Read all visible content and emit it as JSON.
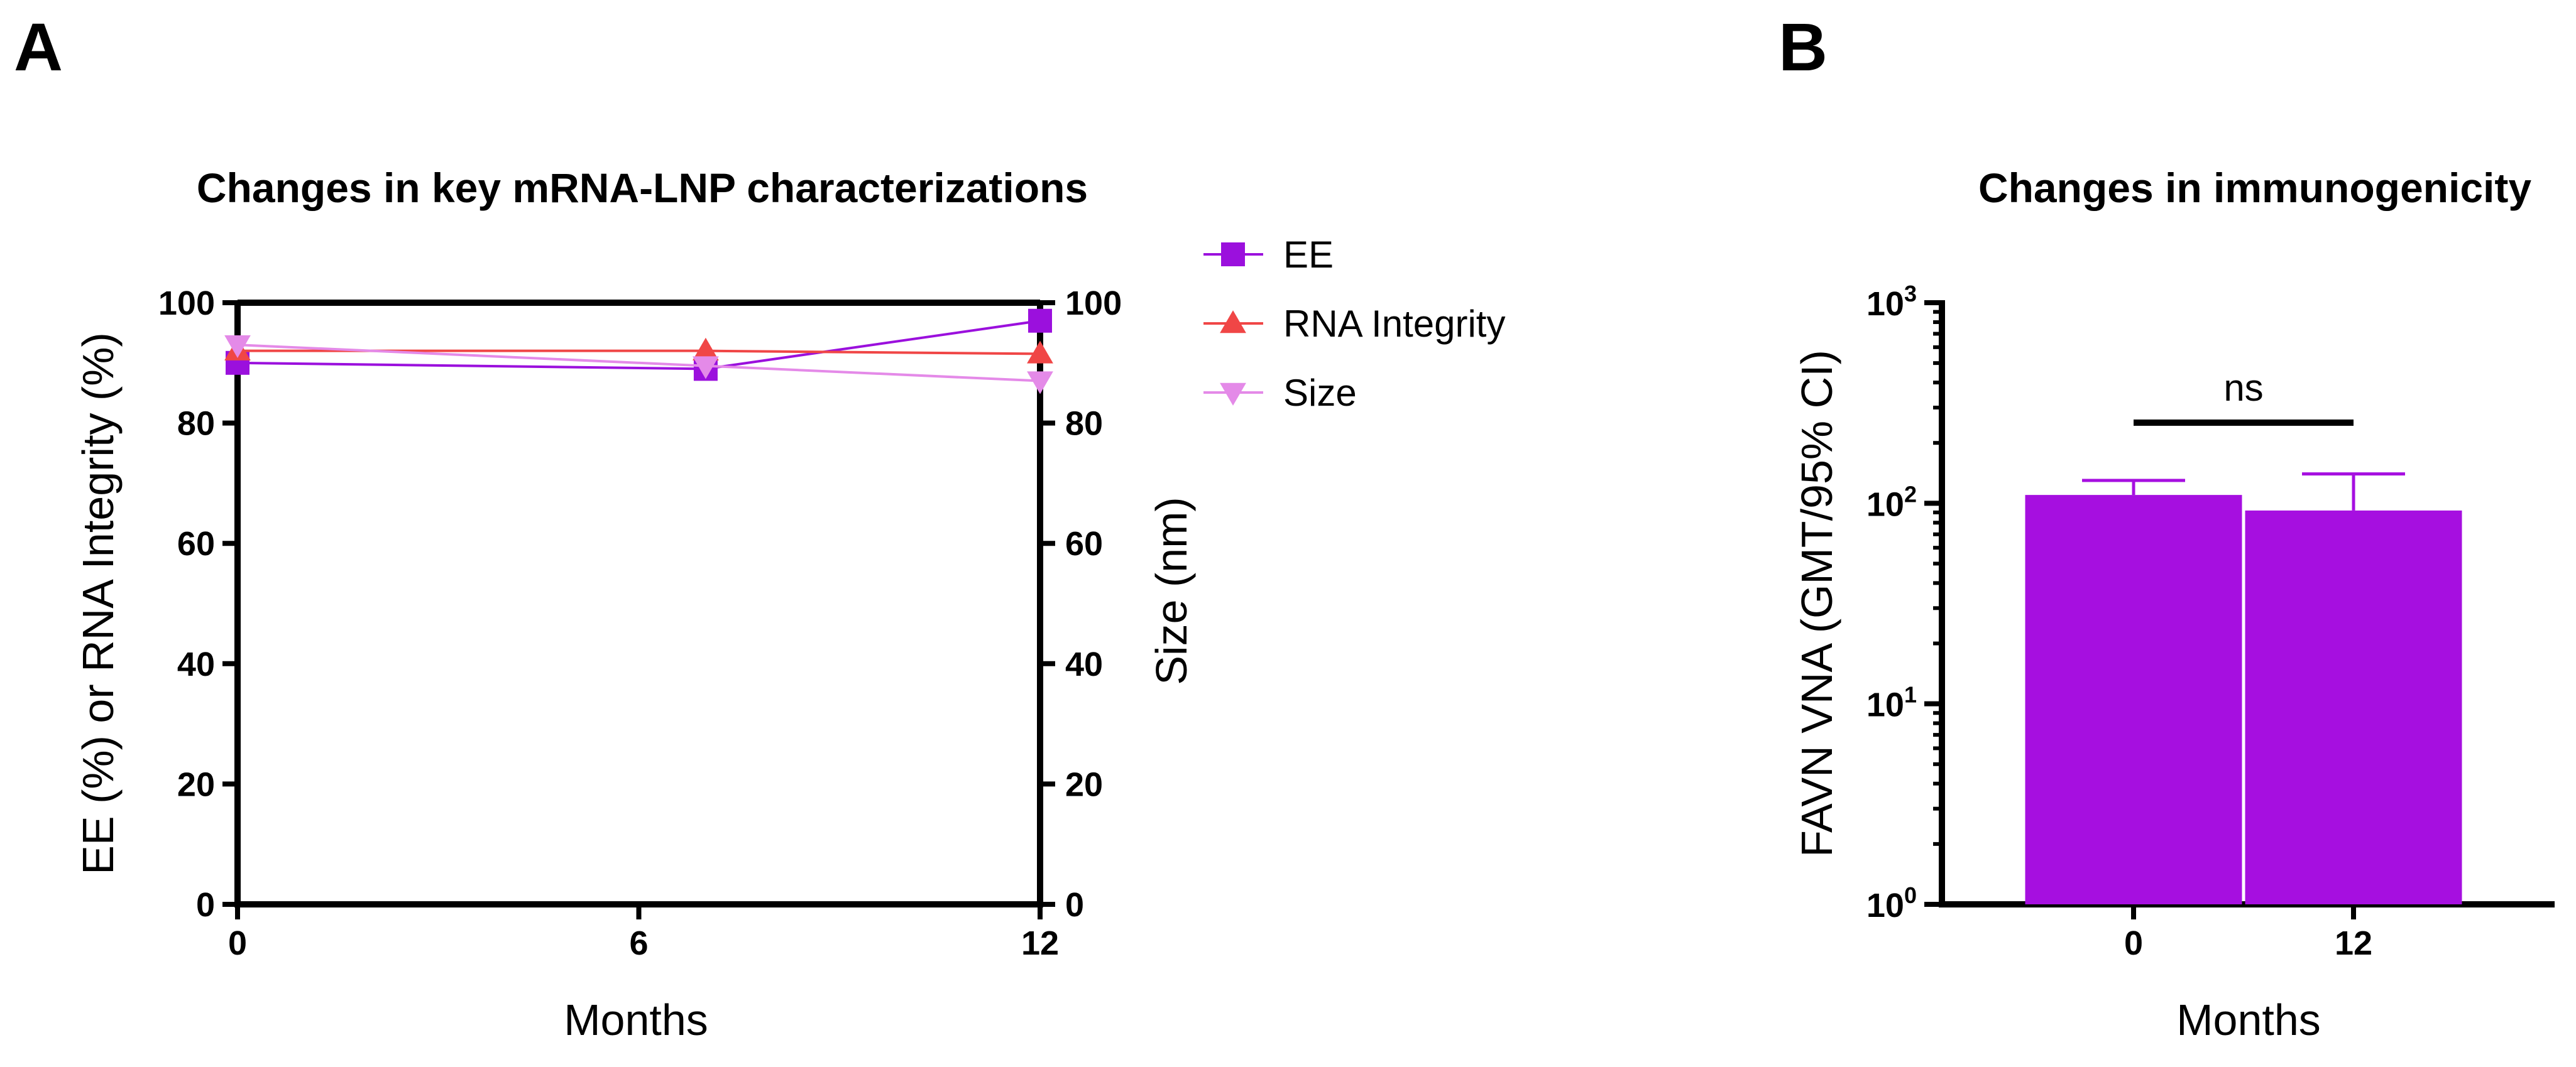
{
  "panels": {
    "a_letter": "A",
    "b_letter": "B"
  },
  "chart_data": [
    {
      "type": "line",
      "title": "Changes in key mRNA-LNP characterizations",
      "xlabel": "Months",
      "ylabel_left": "EE (%) or RNA Integrity (%)",
      "ylabel_right": "Size (nm)",
      "xlim": [
        0,
        12
      ],
      "ylim_left": [
        0,
        100
      ],
      "ylim_right": [
        0,
        100
      ],
      "x_ticks": [
        0,
        6,
        12
      ],
      "y_ticks_left": [
        0,
        20,
        40,
        60,
        80,
        100
      ],
      "y_ticks_right": [
        0,
        20,
        40,
        60,
        80,
        100
      ],
      "legend_position": "top-right outside",
      "series": [
        {
          "name": "EE",
          "axis": "left",
          "marker": "square",
          "color": "#9b10dd",
          "x": [
            0,
            7,
            12
          ],
          "y": [
            90,
            89,
            97
          ]
        },
        {
          "name": "RNA Integrity",
          "axis": "left",
          "marker": "triangle-up",
          "color": "#f04646",
          "x": [
            0,
            7,
            12
          ],
          "y": [
            92,
            92,
            91.5
          ]
        },
        {
          "name": "Size",
          "axis": "right",
          "marker": "triangle-down",
          "color": "#e48ae8",
          "x": [
            0,
            7,
            12
          ],
          "y": [
            93,
            89.5,
            87
          ]
        }
      ]
    },
    {
      "type": "bar",
      "title": "Changes in immunogenicity",
      "xlabel": "Months",
      "ylabel": "FAVN VNA (GMT/95% CI)",
      "yscale": "log",
      "ylim": [
        1,
        1000
      ],
      "y_ticks": [
        {
          "base": "10",
          "exp": "0",
          "value": 1
        },
        {
          "base": "10",
          "exp": "1",
          "value": 10
        },
        {
          "base": "10",
          "exp": "2",
          "value": 100
        },
        {
          "base": "10",
          "exp": "3",
          "value": 1000
        }
      ],
      "categories": [
        "0",
        "12"
      ],
      "values": [
        110,
        92
      ],
      "error_upper": [
        130,
        140
      ],
      "bar_color": "#a60fe0",
      "significance": {
        "label": "ns",
        "between": [
          "0",
          "12"
        ]
      }
    }
  ]
}
